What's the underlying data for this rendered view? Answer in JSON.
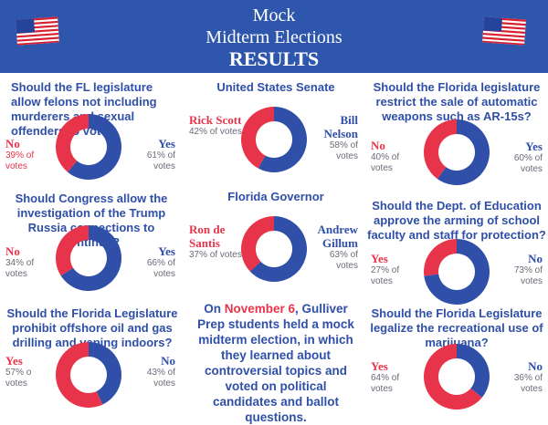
{
  "header": {
    "line1": "Mock",
    "line2": "Midterm Elections",
    "line3": "RESULTS"
  },
  "colors": {
    "banner": "#2f56ad",
    "red": "#e8344a",
    "blue": "#2f4fa8",
    "flag_blue": "#25439b"
  },
  "intro": {
    "before": "On ",
    "date": "November 6",
    "after": ", Gulliver Prep students held a mock midterm election, in which they learned about controversial topics and voted on political candidates and ballot questions."
  },
  "chart_data": [
    {
      "type": "pie",
      "title": "Should the FL legislature allow felons not including murderers and sexual offenders to vote?",
      "categories": [
        "No",
        "Yes"
      ],
      "values": [
        39,
        61
      ],
      "value_labels": [
        "39% of votes",
        "61% of votes"
      ]
    },
    {
      "type": "pie",
      "title": "United States Senate",
      "categories": [
        "Rick Scott",
        "Bill Nelson"
      ],
      "values": [
        42,
        58
      ],
      "value_labels": [
        "42% of votes",
        "58% of votes"
      ]
    },
    {
      "type": "pie",
      "title": "Should the Florida legislature restrict the sale of automatic weapons such as AR-15s?",
      "categories": [
        "No",
        "Yes"
      ],
      "values": [
        40,
        60
      ],
      "value_labels": [
        "40% of votes",
        "60% of votes"
      ]
    },
    {
      "type": "pie",
      "title": "Should Congress allow the investigation of the Trump Russia connections to continue?",
      "categories": [
        "No",
        "Yes"
      ],
      "values": [
        34,
        66
      ],
      "value_labels": [
        "34% of votes",
        "66% of votes"
      ]
    },
    {
      "type": "pie",
      "title": "Florida Governor",
      "categories": [
        "Ron de Santis",
        "Andrew Gillum"
      ],
      "values": [
        37,
        63
      ],
      "value_labels": [
        "37% of votes",
        "63% of votes"
      ]
    },
    {
      "type": "pie",
      "title": "Should the Dept. of Education approve the arming of school faculty and staff for protection?",
      "categories": [
        "Yes",
        "No"
      ],
      "values": [
        27,
        73
      ],
      "value_labels": [
        "27% of votes",
        "73% of votes"
      ]
    },
    {
      "type": "pie",
      "title": "Should the Florida Legislature prohibit offshore oil and gas drilling and vaping indoors?",
      "categories": [
        "Yes",
        "No"
      ],
      "values": [
        57,
        43
      ],
      "value_labels": [
        "57% o votes",
        "43% of votes"
      ]
    },
    {
      "type": "pie",
      "title": "Should the Florida Legislature legalize the recreational use of marijuana?",
      "categories": [
        "Yes",
        "No"
      ],
      "values": [
        64,
        36
      ],
      "value_labels": [
        "64% of votes",
        "36% of votes"
      ]
    }
  ]
}
